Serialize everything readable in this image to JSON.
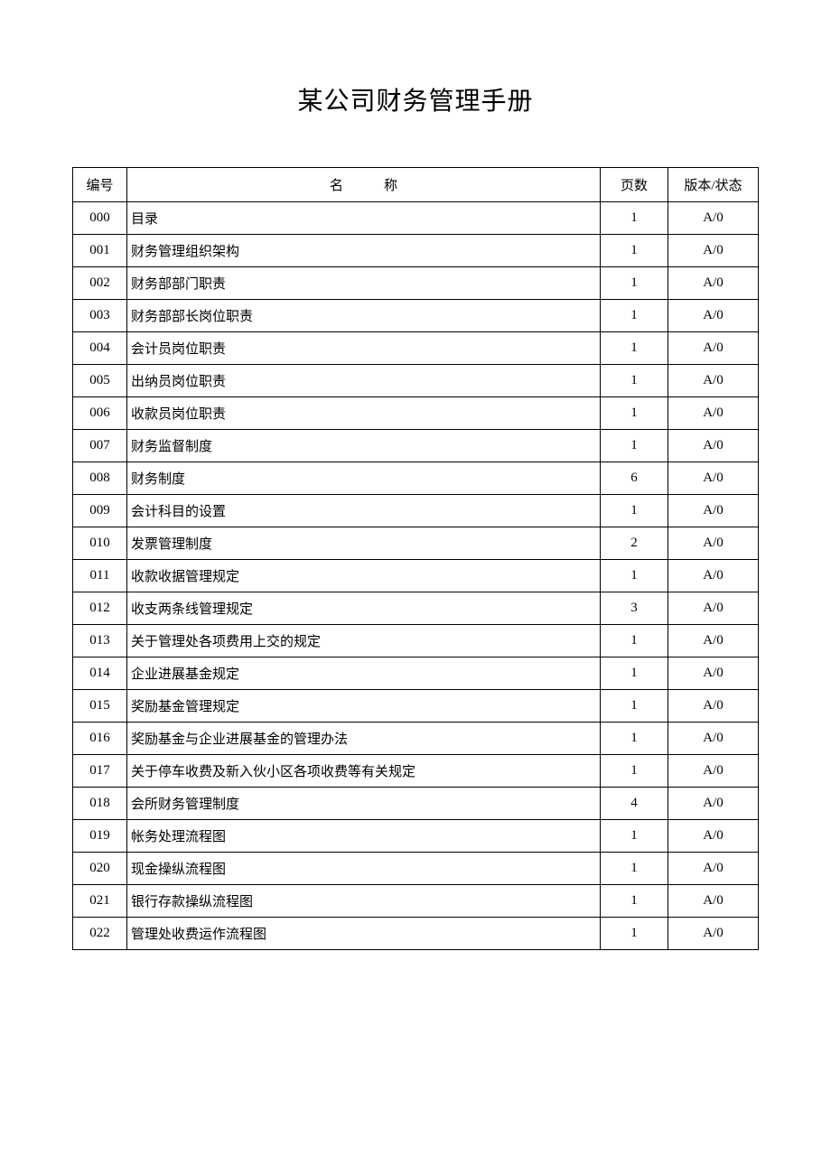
{
  "title": "某公司财务管理手册",
  "headers": {
    "id": "编号",
    "name": "名　　　称",
    "pages": "页数",
    "version": "版本/状态"
  },
  "rows": [
    {
      "id": "000",
      "name": "目录",
      "pages": "1",
      "version": "A/0"
    },
    {
      "id": "001",
      "name": "财务管理组织架构",
      "pages": "1",
      "version": "A/0"
    },
    {
      "id": "002",
      "name": "财务部部门职责",
      "pages": "1",
      "version": "A/0"
    },
    {
      "id": "003",
      "name": "财务部部长岗位职责",
      "pages": "1",
      "version": "A/0"
    },
    {
      "id": "004",
      "name": "会计员岗位职责",
      "pages": "1",
      "version": "A/0"
    },
    {
      "id": "005",
      "name": "出纳员岗位职责",
      "pages": "1",
      "version": "A/0"
    },
    {
      "id": "006",
      "name": "收款员岗位职责",
      "pages": "1",
      "version": "A/0"
    },
    {
      "id": "007",
      "name": "财务监督制度",
      "pages": "1",
      "version": "A/0"
    },
    {
      "id": "008",
      "name": "财务制度",
      "pages": "6",
      "version": "A/0"
    },
    {
      "id": "009",
      "name": "会计科目的设置",
      "pages": "1",
      "version": "A/0"
    },
    {
      "id": "010",
      "name": "发票管理制度",
      "pages": "2",
      "version": "A/0"
    },
    {
      "id": "011",
      "name": "收款收据管理规定",
      "pages": "1",
      "version": "A/0"
    },
    {
      "id": "012",
      "name": "收支两条线管理规定",
      "pages": "3",
      "version": "A/0"
    },
    {
      "id": "013",
      "name": "关于管理处各项费用上交的规定",
      "pages": "1",
      "version": "A/0"
    },
    {
      "id": "014",
      "name": "企业进展基金规定",
      "pages": "1",
      "version": "A/0"
    },
    {
      "id": "015",
      "name": "奖励基金管理规定",
      "pages": "1",
      "version": "A/0"
    },
    {
      "id": "016",
      "name": "奖励基金与企业进展基金的管理办法",
      "pages": "1",
      "version": "A/0"
    },
    {
      "id": "017",
      "name": "关于停车收费及新入伙小区各项收费等有关规定",
      "pages": "1",
      "version": "A/0"
    },
    {
      "id": "018",
      "name": "会所财务管理制度",
      "pages": "4",
      "version": "A/0"
    },
    {
      "id": "019",
      "name": "帐务处理流程图",
      "pages": "1",
      "version": "A/0"
    },
    {
      "id": "020",
      "name": "现金操纵流程图",
      "pages": "1",
      "version": "A/0"
    },
    {
      "id": "021",
      "name": "银行存款操纵流程图",
      "pages": "1",
      "version": "A/0"
    },
    {
      "id": "022",
      "name": "管理处收费运作流程图",
      "pages": "1",
      "version": "A/0"
    }
  ]
}
